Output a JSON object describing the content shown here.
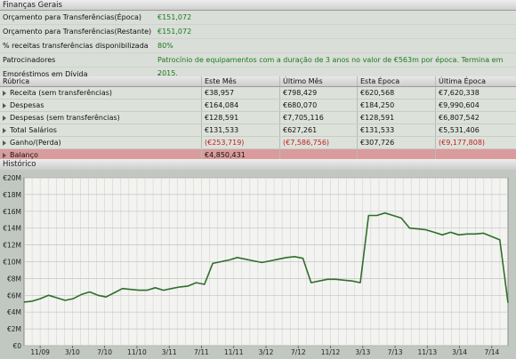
{
  "finance": {
    "title": "Finanças Gerais",
    "rows": [
      {
        "label": "Orçamento para Transferências(Época)",
        "value": "€151,072"
      },
      {
        "label": "Orçamento para Transferências(Restante)",
        "value": "€151,072"
      },
      {
        "label": "% receitas transferências disponibilizada",
        "value": "80%"
      },
      {
        "label": "Patrocinadores",
        "value": "Patrocínio de equipamentos com a duração de 3 anos no valor de €563m por época. Termina em 2015."
      },
      {
        "label": "Empréstimos em Dívida",
        "value": "-"
      }
    ]
  },
  "table": {
    "headers": [
      "Rúbrica",
      "Este Mês",
      "Último Mês",
      "Esta Época",
      "Última Época"
    ],
    "rows": [
      {
        "label": "Receita (sem transferências)",
        "cells": [
          "€38,957",
          "€798,429",
          "€620,568",
          "€7,620,338"
        ]
      },
      {
        "label": "Despesas",
        "cells": [
          "€164,084",
          "€680,070",
          "€184,250",
          "€9,990,604"
        ]
      },
      {
        "label": "Despesas (sem transferências)",
        "cells": [
          "€128,591",
          "€7,705,116",
          "€128,591",
          "€6,807,542"
        ]
      },
      {
        "label": "Total Salários",
        "cells": [
          "€131,533",
          "€627,261",
          "€131,533",
          "€5,531,406"
        ]
      },
      {
        "label": "Ganho/(Perda)",
        "cells": [
          "(€253,719)",
          "(€7,586,756)",
          "€307,726",
          "(€9,177,808)"
        ]
      },
      {
        "label": "Balanço",
        "cells": [
          "€4,850,431",
          "",
          "",
          ""
        ]
      }
    ]
  },
  "history": {
    "title": "Histórico"
  },
  "chart_data": {
    "type": "line",
    "ylim": [
      0,
      20
    ],
    "y_ticks": [
      "€0",
      "€2M",
      "€4M",
      "€6M",
      "€8M",
      "€10M",
      "€12M",
      "€14M",
      "€16M",
      "€18M",
      "€20M"
    ],
    "x_tick_labels": [
      "11/09",
      "3/10",
      "7/10",
      "11/10",
      "3/11",
      "7/11",
      "11/11",
      "3/12",
      "7/12",
      "11/12",
      "3/13",
      "7/13",
      "11/13",
      "3/14",
      "7/14"
    ],
    "series": [
      {
        "values": [
          5.2,
          5.3,
          5.6,
          6.0,
          5.7,
          5.4,
          5.6,
          6.1,
          6.4,
          6.0,
          5.8,
          6.3,
          6.8,
          6.7,
          6.6,
          6.6,
          6.9,
          6.6,
          6.8,
          7.0,
          7.1,
          7.5,
          7.3,
          9.8,
          10.0,
          10.2,
          10.5,
          10.3,
          10.1,
          9.9,
          10.1,
          10.3,
          10.5,
          10.6,
          10.4,
          7.5,
          7.7,
          7.9,
          7.9,
          7.8,
          7.7,
          7.5,
          15.5,
          15.5,
          15.8,
          15.5,
          15.2,
          14.0,
          13.9,
          13.8,
          13.5,
          13.2,
          13.5,
          13.2,
          13.3,
          13.3,
          13.4,
          13.0,
          12.6,
          5.1
        ],
        "color": "#2f6e2b"
      }
    ],
    "grid": true
  }
}
